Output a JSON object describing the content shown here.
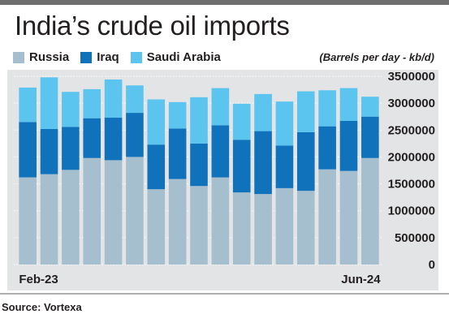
{
  "title": "India’s crude oil imports",
  "unit_note": "(Barrels per day - kb/d)",
  "source": "Source: Vortexa",
  "colors": {
    "Russia": "#a6bfce",
    "Iraq": "#1072bb",
    "Saudi Arabia": "#5bc4ef",
    "panel": "#e3e4e5",
    "text": "#231f20"
  },
  "chart_data": {
    "type": "bar",
    "stacked": true,
    "categories": [
      "Feb-23",
      "Mar-23",
      "Apr-23",
      "May-23",
      "Jun-23",
      "Jul-23",
      "Aug-23",
      "Sep-23",
      "Oct-23",
      "Nov-23",
      "Dec-23",
      "Jan-24",
      "Feb-24",
      "Mar-24",
      "Apr-24",
      "May-24",
      "Jun-24"
    ],
    "visible_category_labels": [
      "Feb-23",
      "Jun-24"
    ],
    "series": [
      {
        "name": "Russia",
        "values": [
          1620000,
          1680000,
          1760000,
          1980000,
          1940000,
          2000000,
          1400000,
          1590000,
          1460000,
          1620000,
          1340000,
          1310000,
          1420000,
          1370000,
          1770000,
          1740000,
          1980000
        ]
      },
      {
        "name": "Iraq",
        "values": [
          1030000,
          840000,
          800000,
          740000,
          790000,
          820000,
          830000,
          940000,
          790000,
          970000,
          980000,
          1170000,
          790000,
          1090000,
          800000,
          930000,
          770000
        ]
      },
      {
        "name": "Saudi Arabia",
        "values": [
          640000,
          960000,
          650000,
          540000,
          710000,
          510000,
          840000,
          490000,
          860000,
          690000,
          670000,
          690000,
          820000,
          760000,
          670000,
          610000,
          370000
        ]
      }
    ],
    "y_ticks": [
      "0",
      "500000",
      "1000000",
      "1500000",
      "2000000",
      "2500000",
      "3000000",
      "3500000"
    ],
    "ylim": [
      0,
      3500000
    ],
    "ylabel": "",
    "xlabel": "",
    "y_axis_side": "right",
    "grid": true,
    "legend_position": "top-left"
  }
}
